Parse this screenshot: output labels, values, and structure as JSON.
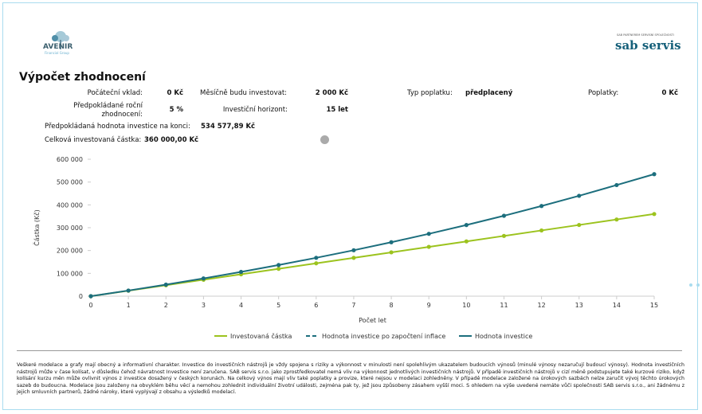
{
  "header": {
    "logo_left": "AVENIR",
    "logo_left_sub": "Financial Group",
    "logo_right_top": "SAB PARTNEREM SERVISNÍ SPOLEČNOSTI",
    "logo_right": "sab servis"
  },
  "title": "Výpočet zhodnocení",
  "fields": [
    {
      "label": "Počáteční vklad:",
      "value": "0 Kč"
    },
    {
      "label": "Měsíčně budu investovat:",
      "value": "2 000 Kč"
    },
    {
      "label": "Typ poplatku:",
      "value": "předplacený"
    },
    {
      "label": "Poplatky:",
      "value": "0 Kč"
    },
    {
      "label": "Předpokládané roční zhodnocení:",
      "value": "5 %"
    },
    {
      "label": "Investiční horizont:",
      "value": "15 let"
    }
  ],
  "summary": [
    {
      "label": "Předpokládaná hodnota investice na konci:",
      "value": "534 577,89 Kč"
    },
    {
      "label": "Celková investovaná částka:",
      "value": "360 000,00 Kč"
    }
  ],
  "chart_data": {
    "type": "line",
    "x_label": "Počet let",
    "y_label": "Částka (Kč)",
    "x": [
      0,
      1,
      2,
      3,
      4,
      5,
      6,
      7,
      8,
      9,
      10,
      11,
      12,
      13,
      14,
      15
    ],
    "xlim": [
      0,
      15
    ],
    "xticks": [
      0,
      1,
      2,
      3,
      4,
      5,
      6,
      7,
      8,
      9,
      10,
      11,
      12,
      13,
      14,
      15
    ],
    "ylim": [
      0,
      600000
    ],
    "yticks": [
      {
        "value": 0,
        "label": "0"
      },
      {
        "value": 100000,
        "label": "100 000"
      },
      {
        "value": 200000,
        "label": "200 000"
      },
      {
        "value": 300000,
        "label": "300 000"
      },
      {
        "value": 400000,
        "label": "400 000"
      },
      {
        "value": 500000,
        "label": "500 000"
      },
      {
        "value": 600000,
        "label": "600 000"
      }
    ],
    "series": [
      {
        "name": "Investovaná částka",
        "color": "#9cc31e",
        "dashed": false,
        "values": [
          0,
          24000,
          48000,
          72000,
          96000,
          120000,
          144000,
          168000,
          192000,
          216000,
          240000,
          264000,
          288000,
          312000,
          336000,
          360000
        ]
      },
      {
        "name": "Hodnota investice po započtení inflace",
        "color": "#1c6e7d",
        "dashed": true,
        "values": [
          null,
          null,
          null,
          null,
          null,
          null,
          null,
          null,
          null,
          null,
          null,
          null,
          null,
          null,
          null,
          null
        ]
      },
      {
        "name": "Hodnota investice",
        "color": "#1c6e7d",
        "dashed": false,
        "values": [
          0,
          24600,
          50500,
          77700,
          106300,
          136400,
          168100,
          201300,
          236300,
          273100,
          311700,
          352300,
          395000,
          439800,
          486900,
          534578
        ]
      }
    ]
  },
  "disclaimer": "Veškeré modelace a grafy mají obecný a informativní charakter. Investice do investičních nástrojů je vždy spojena s riziky a výkonnost v minulosti není spolehlivým ukazatelem budoucích výnosů (minulé výnosy nezaručují budoucí výnosy). Hodnota investičních nástrojů může v čase kolísat, v důsledku čehož návratnost Investice není zaručena. SAB servis s.r.o. jako zprostředkovatel nemá vliv na výkonnost jednotlivých investičních nástrojů. V případě investičních nástrojů v cizí měně podstupujete také kurzové riziko, když kolísání kurzu měn může ovlivnit výnos z investice dosažený v českých korunách. Na celkový výnos mají vliv také poplatky a provize, které nejsou v modelaci zohledněny. V případě modelace založené na úrokových sazbách nelze zaručit vývoj těchto úrokových sazeb do budoucna. Modelace jsou založeny na obvyklém běhu věcí a nemohou zohlednit individuální životní události, zejména pak ty, jež jsou způsobeny zásahem vyšší moci. S ohledem na výše uvedené nemáte vůči společnosti SAB servis s.r.o., ani žádnému z jejich smluvních partnerů, žádné nároky, které vyplývají z obsahu a výsledků modelací."
}
